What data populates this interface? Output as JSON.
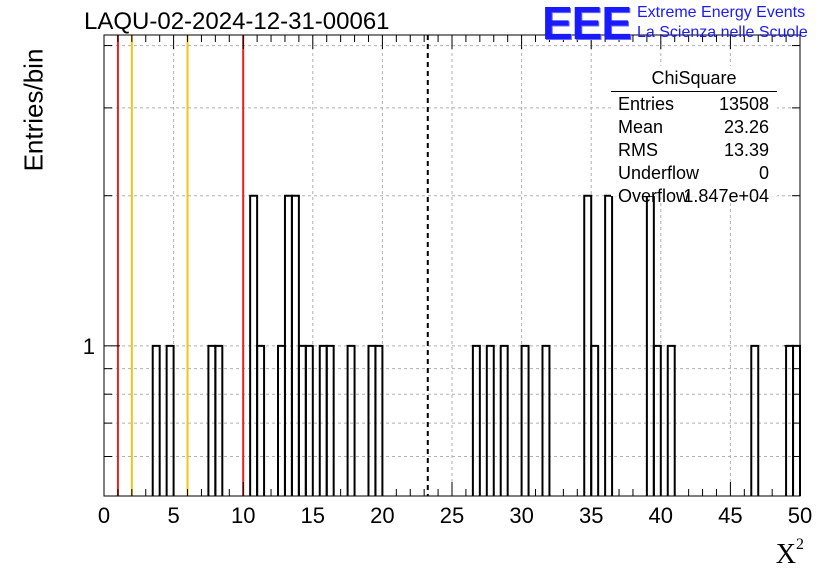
{
  "chart_data": {
    "type": "histogram",
    "title": "LAQU-02-2024-12-31-00061",
    "xlabel": "X",
    "xlabel_superscript": "2",
    "ylabel": "Entries/bin",
    "xlim": [
      0,
      50
    ],
    "ylim": [
      0.5,
      4.2
    ],
    "yscale": "log",
    "bin_width": 0.5,
    "x_ticks": [
      0,
      5,
      10,
      15,
      20,
      25,
      30,
      35,
      40,
      45,
      50
    ],
    "y_tick_labels": [
      {
        "value": 1,
        "label": "1"
      }
    ],
    "grid": true,
    "bins": [
      {
        "x": 3.5,
        "y": 1
      },
      {
        "x": 4.5,
        "y": 1
      },
      {
        "x": 7.5,
        "y": 1
      },
      {
        "x": 8.0,
        "y": 1
      },
      {
        "x": 10.5,
        "y": 2
      },
      {
        "x": 11.0,
        "y": 1
      },
      {
        "x": 12.5,
        "y": 1
      },
      {
        "x": 13.0,
        "y": 2
      },
      {
        "x": 13.5,
        "y": 2
      },
      {
        "x": 14.0,
        "y": 1
      },
      {
        "x": 14.5,
        "y": 1
      },
      {
        "x": 15.5,
        "y": 1
      },
      {
        "x": 16.0,
        "y": 1
      },
      {
        "x": 17.5,
        "y": 1
      },
      {
        "x": 19.0,
        "y": 1
      },
      {
        "x": 19.5,
        "y": 1
      },
      {
        "x": 26.5,
        "y": 1
      },
      {
        "x": 27.5,
        "y": 1
      },
      {
        "x": 28.5,
        "y": 1
      },
      {
        "x": 30.0,
        "y": 1
      },
      {
        "x": 31.5,
        "y": 1
      },
      {
        "x": 34.5,
        "y": 2
      },
      {
        "x": 35.0,
        "y": 1
      },
      {
        "x": 36.0,
        "y": 2
      },
      {
        "x": 39.0,
        "y": 2
      },
      {
        "x": 39.5,
        "y": 1
      },
      {
        "x": 40.5,
        "y": 1
      },
      {
        "x": 46.5,
        "y": 1
      },
      {
        "x": 49.0,
        "y": 1
      },
      {
        "x": 49.5,
        "y": 1
      }
    ],
    "vertical_lines": [
      {
        "x": 1,
        "color": "#e32222",
        "style": "solid"
      },
      {
        "x": 2,
        "color": "#f0c419",
        "style": "solid"
      },
      {
        "x": 6,
        "color": "#f0c419",
        "style": "solid"
      },
      {
        "x": 10,
        "color": "#e32222",
        "style": "solid"
      },
      {
        "x": 23.26,
        "color": "#000000",
        "style": "dashed"
      }
    ],
    "stats_box": {
      "title": "ChiSquare",
      "entries": [
        {
          "name": "Entries",
          "value": "13508"
        },
        {
          "name": "Mean",
          "value": "23.26"
        },
        {
          "name": "RMS",
          "value": "13.39"
        },
        {
          "name": "Underflow",
          "value": "0"
        },
        {
          "name": "Overflow",
          "value": "1.847e+04"
        }
      ]
    }
  },
  "logo": {
    "text": "EEE",
    "line1": "Extreme Energy Events",
    "line2": "La Scienza nelle Scuole",
    "color": "#1a1aff"
  }
}
